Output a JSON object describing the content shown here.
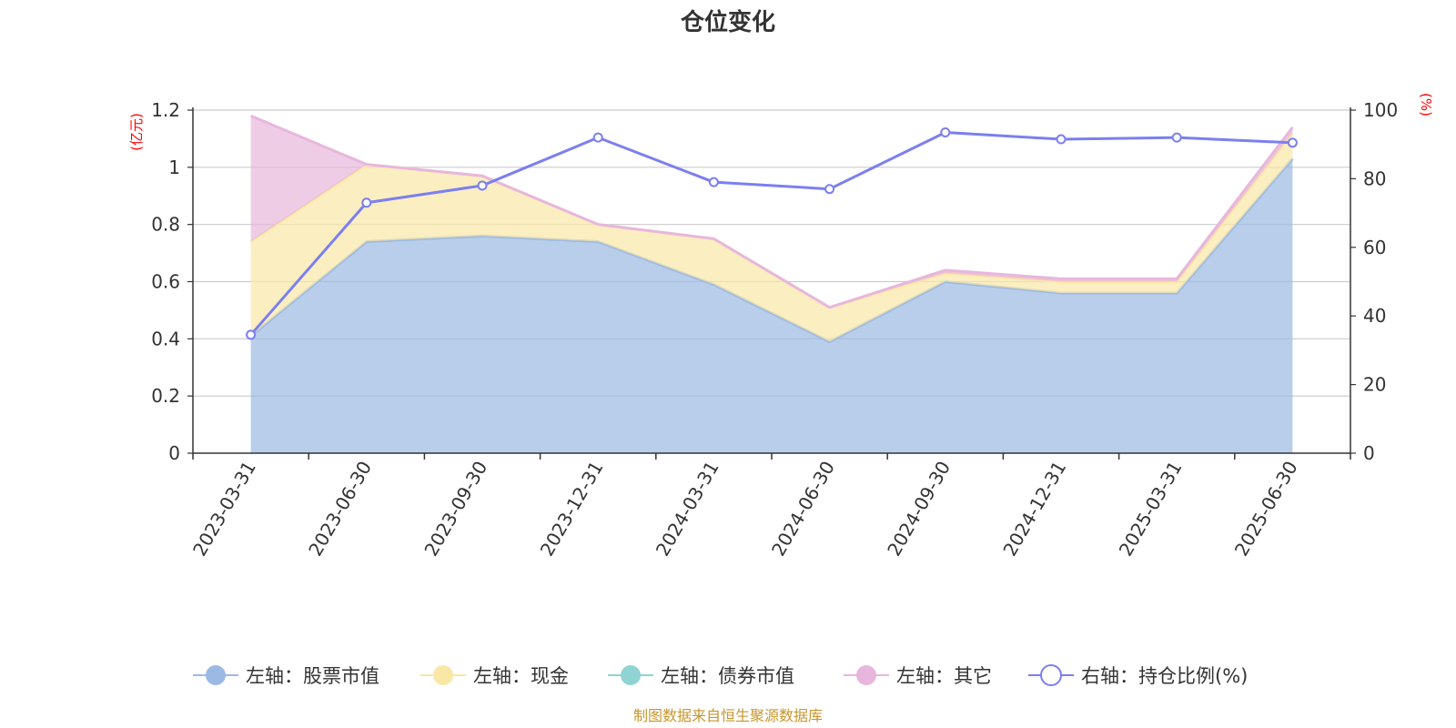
{
  "chart_data": {
    "type": "area",
    "title": "仓位变化",
    "left_axis": {
      "unit": "(亿元)",
      "ylim": [
        0,
        1.2
      ],
      "ticks": [
        "0",
        "0.2",
        "0.4",
        "0.6",
        "0.8",
        "1",
        "1.2"
      ]
    },
    "right_axis": {
      "unit": "(%)",
      "ylim": [
        0,
        100
      ],
      "ticks": [
        "0",
        "20",
        "40",
        "60",
        "80",
        "100"
      ]
    },
    "categories": [
      "2023-03-31",
      "2023-06-30",
      "2023-09-30",
      "2023-12-31",
      "2024-03-31",
      "2024-06-30",
      "2024-09-30",
      "2024-12-31",
      "2025-03-31",
      "2025-06-30"
    ],
    "series": [
      {
        "name": "左轴：股票市值",
        "axis": "left",
        "kind": "stacked-area",
        "color": "#9bb9e3",
        "values": [
          0.41,
          0.74,
          0.76,
          0.74,
          0.59,
          0.39,
          0.6,
          0.56,
          0.56,
          1.03
        ]
      },
      {
        "name": "左轴：现金",
        "axis": "left",
        "kind": "stacked-area",
        "color": "#f9e7a7",
        "values": [
          0.33,
          0.27,
          0.21,
          0.06,
          0.16,
          0.12,
          0.03,
          0.04,
          0.04,
          0.09
        ]
      },
      {
        "name": "左轴：债券市值",
        "axis": "left",
        "kind": "stacked-area",
        "color": "#8fd3d3",
        "values": [
          0,
          0,
          0,
          0,
          0,
          0,
          0,
          0,
          0,
          0
        ]
      },
      {
        "name": "左轴：其它",
        "axis": "left",
        "kind": "stacked-area",
        "color": "#e8b6dc",
        "values": [
          0.44,
          0,
          0,
          0,
          0,
          0,
          0.01,
          0.01,
          0.01,
          0.02
        ]
      },
      {
        "name": "右轴：持仓比例(%)",
        "axis": "right",
        "kind": "line",
        "color": "#7b7ff0",
        "values": [
          34.5,
          73,
          78,
          92,
          79,
          77,
          93.5,
          91.5,
          92,
          90.5
        ]
      }
    ],
    "legend_position": "bottom",
    "grid": true
  },
  "source": "制图数据来自恒生聚源数据库"
}
